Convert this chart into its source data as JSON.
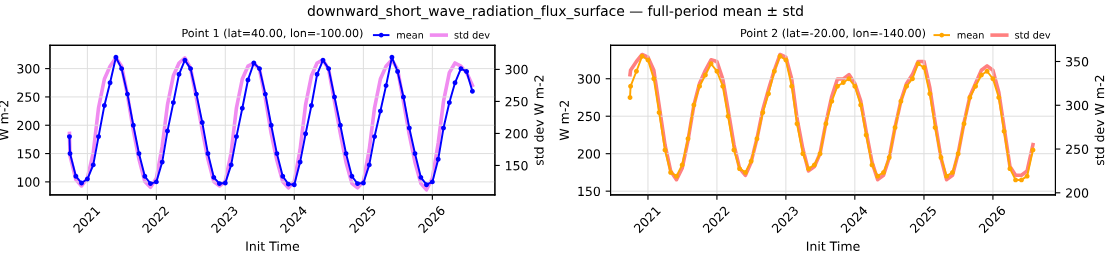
{
  "chart_data": [
    {
      "type": "line",
      "title": "Point 1 (lat=40.00, lon=-100.00)",
      "annotations": [
        "downward_short_wave_radiation_flux_surface — full-period mean ± std"
      ],
      "xlabel": "Init Time",
      "ylabel": "W m-2",
      "y2label": "std dev W m-2",
      "grid": true,
      "legend": "top right",
      "x": [
        "2020-09-28",
        "2020-10",
        "2020-11",
        "2020-12",
        "2021-01",
        "2021-02",
        "2021-03",
        "2021-04",
        "2021-05",
        "2021-06",
        "2021-07",
        "2021-08",
        "2021-09",
        "2021-10",
        "2021-11",
        "2021-12",
        "2022-01",
        "2022-02",
        "2022-03",
        "2022-04",
        "2022-05",
        "2022-06",
        "2022-07",
        "2022-08",
        "2022-09",
        "2022-10",
        "2022-11",
        "2022-12",
        "2023-01",
        "2023-02",
        "2023-03",
        "2023-04",
        "2023-05",
        "2023-06",
        "2023-07",
        "2023-08",
        "2023-09",
        "2023-10",
        "2023-11",
        "2023-12",
        "2024-01",
        "2024-02",
        "2024-03",
        "2024-04",
        "2024-05",
        "2024-06",
        "2024-07",
        "2024-08",
        "2024-09",
        "2024-10",
        "2024-11",
        "2024-12",
        "2025-01",
        "2025-02",
        "2025-03",
        "2025-04",
        "2025-05",
        "2025-06",
        "2025-07",
        "2025-08",
        "2025-09",
        "2025-10",
        "2025-11",
        "2025-12",
        "2026-01",
        "2026-02",
        "2026-03",
        "2026-04",
        "2026-05",
        "2026-06",
        "2026-07",
        "2026-08"
      ],
      "xlim": [
        "2020-06-17",
        "2026-11-28"
      ],
      "xticks": [
        {
          "value": "2021-01-01",
          "label": "2021"
        },
        {
          "value": "2022-01-01",
          "label": "2022"
        },
        {
          "value": "2023-01-01",
          "label": "2023"
        },
        {
          "value": "2024-01-01",
          "label": "2024"
        },
        {
          "value": "2025-01-01",
          "label": "2025"
        },
        {
          "value": "2026-01-01",
          "label": "2026"
        }
      ],
      "ylim": [
        77,
        341
      ],
      "yticks": [
        100,
        150,
        200,
        250,
        300
      ],
      "y2lim": [
        104,
        337.5
      ],
      "y2ticks": [
        150,
        200,
        250,
        300
      ],
      "series": [
        {
          "name": "mean",
          "color": "#0000ff",
          "marker": "circle",
          "values": [
            180,
            150,
            110,
            98,
            105,
            130,
            180,
            235,
            275,
            320,
            300,
            255,
            200,
            150,
            110,
            97,
            100,
            135,
            190,
            240,
            290,
            315,
            300,
            255,
            205,
            150,
            108,
            97,
            98,
            130,
            180,
            230,
            280,
            310,
            300,
            255,
            200,
            150,
            110,
            96,
            95,
            135,
            185,
            235,
            290,
            315,
            300,
            250,
            200,
            150,
            110,
            97,
            98,
            130,
            180,
            225,
            270,
            320,
            295,
            250,
            195,
            150,
            108,
            95,
            100,
            140,
            195,
            240,
            275,
            300,
            295,
            260
          ]
        },
        {
          "name": "std dev",
          "color": "#f08cf0",
          "axis": "y2",
          "marker": "none",
          "values": [
            200,
            165,
            128,
            118,
            130,
            170,
            240,
            285,
            305,
            318,
            305,
            260,
            205,
            160,
            125,
            116,
            130,
            180,
            245,
            290,
            310,
            318,
            302,
            255,
            205,
            160,
            125,
            118,
            125,
            170,
            240,
            285,
            305,
            310,
            300,
            255,
            200,
            158,
            125,
            115,
            125,
            175,
            245,
            290,
            310,
            315,
            300,
            250,
            200,
            155,
            122,
            115,
            125,
            175,
            240,
            285,
            305,
            315,
            300,
            250,
            198,
            155,
            122,
            112,
            130,
            185,
            250,
            295,
            310,
            305,
            295,
            275
          ]
        }
      ]
    },
    {
      "type": "line",
      "title": "Point 2 (lat=-20.00, lon=-140.00)",
      "xlabel": "Init Time",
      "ylabel": "W m-2",
      "y2label": "std dev W m-2",
      "grid": true,
      "legend": "top right",
      "x": [
        "2020-09-28",
        "2020-10",
        "2020-11",
        "2020-12",
        "2021-01",
        "2021-02",
        "2021-03",
        "2021-04",
        "2021-05",
        "2021-06",
        "2021-07",
        "2021-08",
        "2021-09",
        "2021-10",
        "2021-11",
        "2021-12",
        "2022-01",
        "2022-02",
        "2022-03",
        "2022-04",
        "2022-05",
        "2022-06",
        "2022-07",
        "2022-08",
        "2022-09",
        "2022-10",
        "2022-11",
        "2022-12",
        "2023-01",
        "2023-02",
        "2023-03",
        "2023-04",
        "2023-05",
        "2023-06",
        "2023-07",
        "2023-08",
        "2023-09",
        "2023-10",
        "2023-11",
        "2023-12",
        "2024-01",
        "2024-02",
        "2024-03",
        "2024-04",
        "2024-05",
        "2024-06",
        "2024-07",
        "2024-08",
        "2024-09",
        "2024-10",
        "2024-11",
        "2024-12",
        "2025-01",
        "2025-02",
        "2025-03",
        "2025-04",
        "2025-05",
        "2025-06",
        "2025-07",
        "2025-08",
        "2025-09",
        "2025-10",
        "2025-11",
        "2025-12",
        "2026-01",
        "2026-02",
        "2026-03",
        "2026-04",
        "2026-05",
        "2026-06",
        "2026-07",
        "2026-08"
      ],
      "xlim": [
        "2020-06-17",
        "2026-11-28"
      ],
      "xticks": [
        {
          "value": "2021-01-01",
          "label": "2021"
        },
        {
          "value": "2022-01-01",
          "label": "2022"
        },
        {
          "value": "2023-01-01",
          "label": "2023"
        },
        {
          "value": "2024-01-01",
          "label": "2024"
        },
        {
          "value": "2025-01-01",
          "label": "2025"
        },
        {
          "value": "2026-01-01",
          "label": "2026"
        }
      ],
      "ylim": [
        145,
        344.5
      ],
      "yticks": [
        150,
        200,
        250,
        300
      ],
      "y2lim": [
        197.6,
        368.4
      ],
      "y2ticks": [
        200,
        250,
        300,
        350
      ],
      "series": [
        {
          "name": "mean",
          "color": "#ffa500",
          "marker": "circle",
          "values": [
            275,
            290,
            310,
            330,
            325,
            300,
            255,
            205,
            175,
            170,
            185,
            220,
            265,
            290,
            305,
            320,
            310,
            290,
            250,
            205,
            180,
            175,
            190,
            220,
            255,
            280,
            310,
            330,
            325,
            290,
            240,
            200,
            180,
            185,
            200,
            240,
            270,
            290,
            295,
            300,
            290,
            265,
            225,
            185,
            170,
            175,
            195,
            235,
            270,
            290,
            300,
            320,
            315,
            280,
            235,
            195,
            170,
            175,
            200,
            240,
            275,
            290,
            305,
            310,
            300,
            275,
            230,
            180,
            165,
            165,
            170,
            205
          ]
        },
        {
          "name": "std dev",
          "color": "#ff8080",
          "axis": "y2",
          "marker": "none",
          "values": [
            335,
            340,
            350,
            358,
            355,
            340,
            300,
            255,
            225,
            215,
            228,
            260,
            300,
            325,
            340,
            352,
            350,
            330,
            295,
            255,
            228,
            220,
            235,
            262,
            295,
            318,
            340,
            358,
            355,
            330,
            285,
            250,
            225,
            230,
            245,
            280,
            310,
            330,
            330,
            335,
            325,
            305,
            270,
            235,
            215,
            220,
            240,
            275,
            305,
            325,
            335,
            350,
            350,
            320,
            280,
            240,
            215,
            220,
            245,
            280,
            310,
            325,
            340,
            345,
            340,
            315,
            275,
            230,
            220,
            220,
            225,
            255
          ]
        }
      ]
    }
  ]
}
